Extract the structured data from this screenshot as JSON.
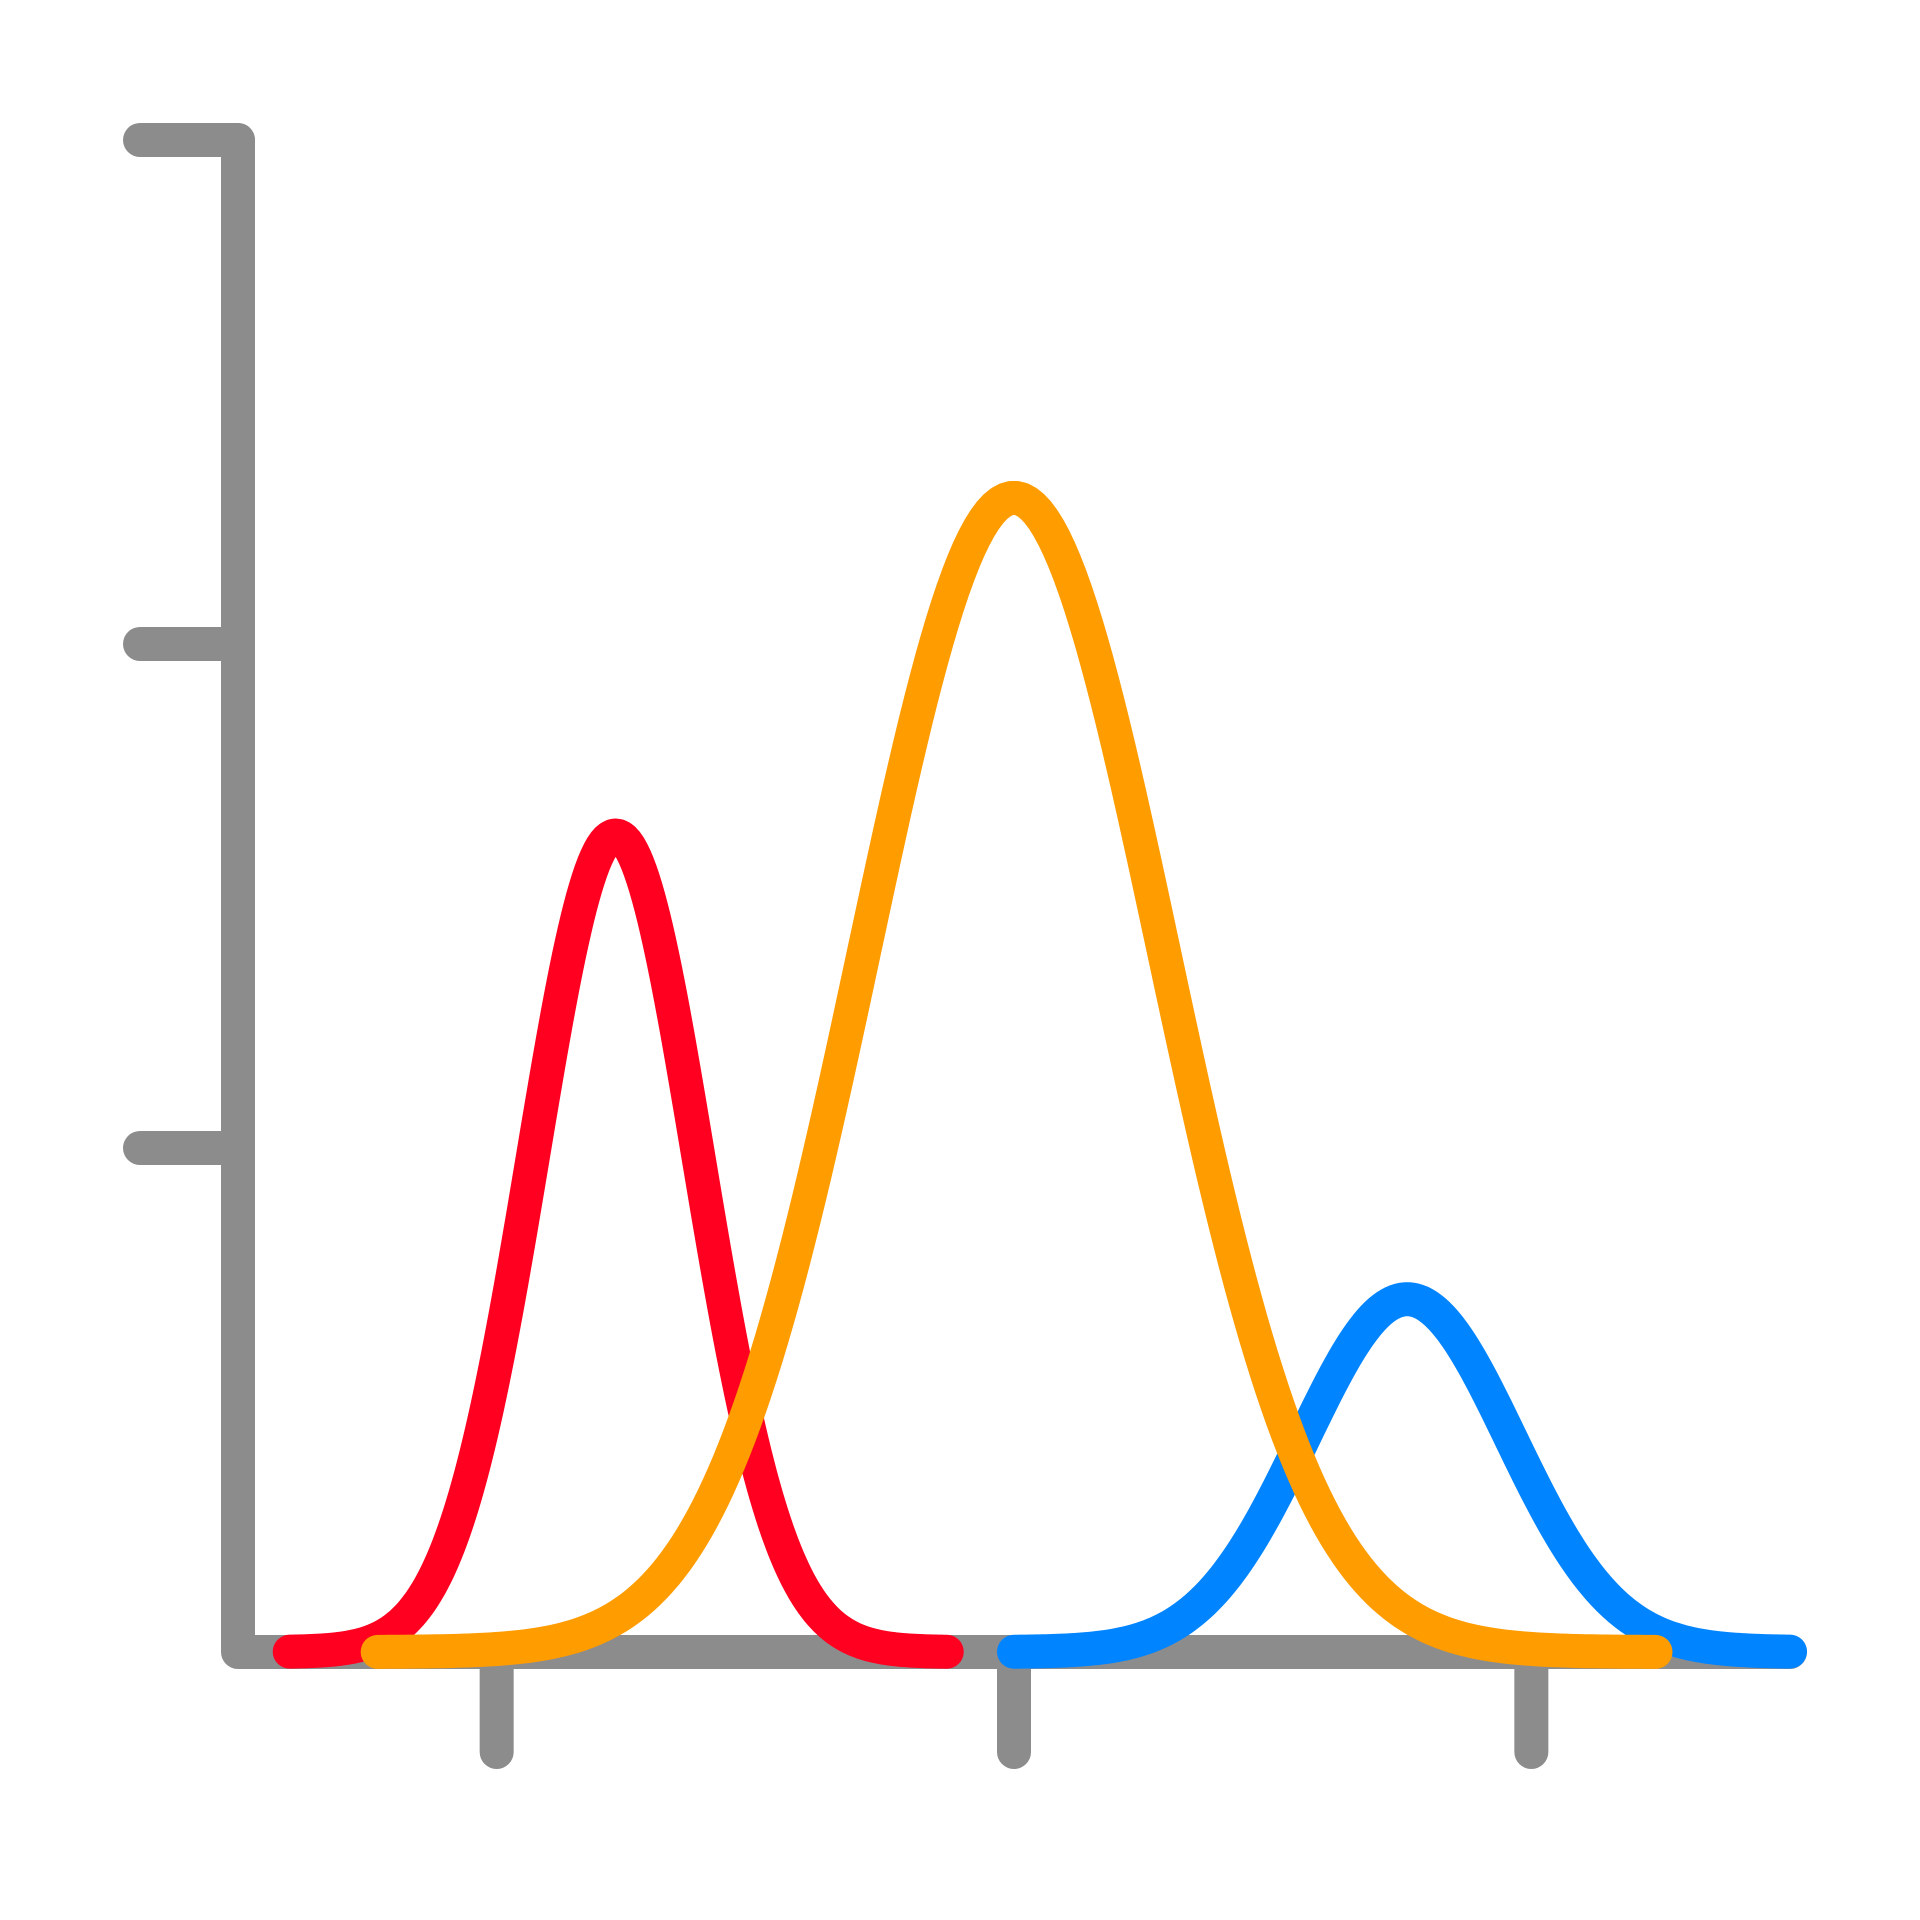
{
  "chart_data": {
    "type": "line",
    "title": "",
    "xlabel": "",
    "ylabel": "",
    "xlim": [
      0,
      30
    ],
    "ylim": [
      0,
      3
    ],
    "x_ticks": [
      5,
      15,
      25
    ],
    "y_ticks": [
      1,
      2,
      3
    ],
    "tick_labels_visible": false,
    "grid": false,
    "legend": "none",
    "axis_color": "#8c8c8c",
    "series": [
      {
        "color": "#ff0020",
        "mean": 7.3,
        "sd": 1.6,
        "peak": 1.62,
        "x_range": [
          1,
          13.7
        ]
      },
      {
        "color": "#ff9c00",
        "mean": 15.0,
        "sd": 2.9,
        "peak": 2.29,
        "x_range": [
          2.7,
          27.4
        ]
      },
      {
        "color": "#0084ff",
        "mean": 22.6,
        "sd": 2.0,
        "peak": 0.7,
        "x_range": [
          15,
          30
        ]
      }
    ]
  }
}
